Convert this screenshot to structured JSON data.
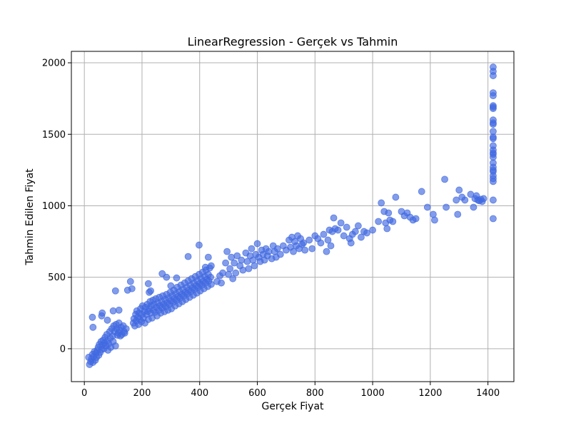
{
  "chart_data": {
    "type": "scatter",
    "title": "LinearRegression - Gerçek vs Tahmin",
    "xlabel": "Gerçek Fiyat",
    "ylabel": "Tahmin Edilen Fiyat",
    "xlim": [
      -45,
      1490
    ],
    "ylim": [
      -230,
      2080
    ],
    "xticks": [
      0,
      200,
      400,
      600,
      800,
      1000,
      1200,
      1400
    ],
    "yticks": [
      0,
      500,
      1000,
      1500,
      2000
    ],
    "grid": true,
    "legend": "none",
    "point_color": "#4169e1",
    "point_opacity": 0.65,
    "series": [
      {
        "points": [
          [
            15,
            -60
          ],
          [
            18,
            -110
          ],
          [
            22,
            -90
          ],
          [
            25,
            -70
          ],
          [
            28,
            -40
          ],
          [
            30,
            -95
          ],
          [
            32,
            -55
          ],
          [
            35,
            -20
          ],
          [
            38,
            -80
          ],
          [
            40,
            -30
          ],
          [
            42,
            -60
          ],
          [
            45,
            -10
          ],
          [
            48,
            10
          ],
          [
            50,
            -45
          ],
          [
            52,
            30
          ],
          [
            55,
            -25
          ],
          [
            58,
            50
          ],
          [
            60,
            -5
          ],
          [
            62,
            25
          ],
          [
            65,
            60
          ],
          [
            68,
            0
          ],
          [
            70,
            40
          ],
          [
            72,
            80
          ],
          [
            75,
            20
          ],
          [
            78,
            100
          ],
          [
            80,
            55
          ],
          [
            82,
            -10
          ],
          [
            85,
            35
          ],
          [
            88,
            120
          ],
          [
            90,
            75
          ],
          [
            92,
            10
          ],
          [
            95,
            140
          ],
          [
            98,
            90
          ],
          [
            100,
            50
          ],
          [
            102,
            160
          ],
          [
            105,
            120
          ],
          [
            108,
            20
          ],
          [
            110,
            170
          ],
          [
            112,
            140
          ],
          [
            115,
            95
          ],
          [
            118,
            110
          ],
          [
            120,
            180
          ],
          [
            122,
            130
          ],
          [
            125,
            90
          ],
          [
            128,
            150
          ],
          [
            130,
            100
          ],
          [
            135,
            160
          ],
          [
            138,
            120
          ],
          [
            140,
            110
          ],
          [
            145,
            140
          ],
          [
            28,
            220
          ],
          [
            30,
            150
          ],
          [
            60,
            230
          ],
          [
            62,
            250
          ],
          [
            80,
            200
          ],
          [
            100,
            265
          ],
          [
            108,
            405
          ],
          [
            120,
            270
          ],
          [
            150,
            410
          ],
          [
            160,
            470
          ],
          [
            165,
            420
          ],
          [
            170,
            180
          ],
          [
            172,
            210
          ],
          [
            175,
            160
          ],
          [
            178,
            240
          ],
          [
            180,
            195
          ],
          [
            182,
            265
          ],
          [
            185,
            220
          ],
          [
            188,
            170
          ],
          [
            190,
            250
          ],
          [
            192,
            205
          ],
          [
            195,
            280
          ],
          [
            198,
            190
          ],
          [
            200,
            240
          ],
          [
            202,
            300
          ],
          [
            205,
            215
          ],
          [
            208,
            260
          ],
          [
            210,
            180
          ],
          [
            212,
            290
          ],
          [
            215,
            240
          ],
          [
            218,
            310
          ],
          [
            220,
            260
          ],
          [
            222,
            205
          ],
          [
            225,
            280
          ],
          [
            228,
            330
          ],
          [
            230,
            250
          ],
          [
            232,
            300
          ],
          [
            235,
            215
          ],
          [
            238,
            340
          ],
          [
            240,
            270
          ],
          [
            242,
            310
          ],
          [
            245,
            255
          ],
          [
            248,
            350
          ],
          [
            250,
            290
          ],
          [
            252,
            230
          ],
          [
            255,
            320
          ],
          [
            258,
            270
          ],
          [
            260,
            360
          ],
          [
            262,
            300
          ],
          [
            265,
            250
          ],
          [
            268,
            330
          ],
          [
            270,
            285
          ],
          [
            272,
            370
          ],
          [
            275,
            310
          ],
          [
            278,
            260
          ],
          [
            280,
            345
          ],
          [
            282,
            295
          ],
          [
            285,
            380
          ],
          [
            288,
            320
          ],
          [
            290,
            270
          ],
          [
            292,
            355
          ],
          [
            295,
            310
          ],
          [
            298,
            395
          ],
          [
            300,
            335
          ],
          [
            302,
            280
          ],
          [
            305,
            370
          ],
          [
            308,
            325
          ],
          [
            310,
            410
          ],
          [
            312,
            350
          ],
          [
            315,
            300
          ],
          [
            318,
            385
          ],
          [
            320,
            340
          ],
          [
            322,
            430
          ],
          [
            325,
            365
          ],
          [
            328,
            315
          ],
          [
            330,
            400
          ],
          [
            332,
            355
          ],
          [
            335,
            445
          ],
          [
            338,
            380
          ],
          [
            340,
            330
          ],
          [
            342,
            415
          ],
          [
            345,
            370
          ],
          [
            348,
            460
          ],
          [
            350,
            395
          ],
          [
            352,
            345
          ],
          [
            355,
            430
          ],
          [
            358,
            385
          ],
          [
            360,
            475
          ],
          [
            362,
            410
          ],
          [
            365,
            360
          ],
          [
            368,
            445
          ],
          [
            370,
            400
          ],
          [
            372,
            490
          ],
          [
            375,
            425
          ],
          [
            378,
            375
          ],
          [
            380,
            460
          ],
          [
            382,
            415
          ],
          [
            385,
            505
          ],
          [
            388,
            440
          ],
          [
            390,
            390
          ],
          [
            392,
            475
          ],
          [
            395,
            430
          ],
          [
            398,
            520
          ],
          [
            400,
            455
          ],
          [
            402,
            405
          ],
          [
            405,
            490
          ],
          [
            408,
            445
          ],
          [
            410,
            535
          ],
          [
            412,
            470
          ],
          [
            415,
            420
          ],
          [
            418,
            505
          ],
          [
            420,
            460
          ],
          [
            422,
            550
          ],
          [
            425,
            485
          ],
          [
            428,
            435
          ],
          [
            430,
            520
          ],
          [
            432,
            475
          ],
          [
            435,
            565
          ],
          [
            438,
            500
          ],
          [
            440,
            450
          ],
          [
            222,
            455
          ],
          [
            225,
            395
          ],
          [
            230,
            405
          ],
          [
            270,
            525
          ],
          [
            285,
            500
          ],
          [
            300,
            440
          ],
          [
            320,
            495
          ],
          [
            360,
            645
          ],
          [
            398,
            725
          ],
          [
            420,
            570
          ],
          [
            430,
            640
          ],
          [
            440,
            580
          ],
          [
            460,
            470
          ],
          [
            470,
            510
          ],
          [
            475,
            460
          ],
          [
            480,
            530
          ],
          [
            490,
            600
          ],
          [
            495,
            680
          ],
          [
            500,
            520
          ],
          [
            505,
            560
          ],
          [
            510,
            640
          ],
          [
            515,
            490
          ],
          [
            520,
            600
          ],
          [
            525,
            530
          ],
          [
            530,
            650
          ],
          [
            540,
            580
          ],
          [
            545,
            620
          ],
          [
            550,
            550
          ],
          [
            560,
            670
          ],
          [
            565,
            610
          ],
          [
            570,
            560
          ],
          [
            575,
            650
          ],
          [
            580,
            700
          ],
          [
            585,
            620
          ],
          [
            590,
            580
          ],
          [
            595,
            660
          ],
          [
            600,
            735
          ],
          [
            605,
            640
          ],
          [
            610,
            610
          ],
          [
            615,
            690
          ],
          [
            620,
            660
          ],
          [
            625,
            620
          ],
          [
            630,
            700
          ],
          [
            635,
            650
          ],
          [
            640,
            680
          ],
          [
            650,
            630
          ],
          [
            655,
            720
          ],
          [
            660,
            680
          ],
          [
            665,
            640
          ],
          [
            670,
            700
          ],
          [
            680,
            660
          ],
          [
            690,
            720
          ],
          [
            700,
            690
          ],
          [
            710,
            760
          ],
          [
            715,
            710
          ],
          [
            720,
            780
          ],
          [
            725,
            680
          ],
          [
            730,
            750
          ],
          [
            735,
            720
          ],
          [
            740,
            790
          ],
          [
            745,
            700
          ],
          [
            750,
            770
          ],
          [
            755,
            730
          ],
          [
            760,
            740
          ],
          [
            765,
            690
          ],
          [
            780,
            760
          ],
          [
            790,
            700
          ],
          [
            800,
            790
          ],
          [
            810,
            770
          ],
          [
            820,
            740
          ],
          [
            830,
            800
          ],
          [
            840,
            680
          ],
          [
            845,
            760
          ],
          [
            850,
            830
          ],
          [
            855,
            720
          ],
          [
            860,
            820
          ],
          [
            865,
            915
          ],
          [
            870,
            840
          ],
          [
            880,
            830
          ],
          [
            890,
            880
          ],
          [
            900,
            790
          ],
          [
            910,
            850
          ],
          [
            920,
            770
          ],
          [
            925,
            740
          ],
          [
            930,
            800
          ],
          [
            940,
            820
          ],
          [
            950,
            860
          ],
          [
            960,
            780
          ],
          [
            970,
            820
          ],
          [
            980,
            810
          ],
          [
            1000,
            830
          ],
          [
            1020,
            890
          ],
          [
            1030,
            1020
          ],
          [
            1040,
            960
          ],
          [
            1045,
            880
          ],
          [
            1050,
            840
          ],
          [
            1055,
            950
          ],
          [
            1060,
            900
          ],
          [
            1070,
            890
          ],
          [
            1080,
            1060
          ],
          [
            1100,
            960
          ],
          [
            1110,
            930
          ],
          [
            1120,
            950
          ],
          [
            1130,
            920
          ],
          [
            1140,
            900
          ],
          [
            1150,
            910
          ],
          [
            1170,
            1100
          ],
          [
            1190,
            990
          ],
          [
            1210,
            940
          ],
          [
            1215,
            900
          ],
          [
            1250,
            1185
          ],
          [
            1255,
            990
          ],
          [
            1290,
            1040
          ],
          [
            1295,
            940
          ],
          [
            1300,
            1110
          ],
          [
            1310,
            1060
          ],
          [
            1320,
            1040
          ],
          [
            1340,
            1080
          ],
          [
            1350,
            990
          ],
          [
            1355,
            1050
          ],
          [
            1360,
            1070
          ],
          [
            1365,
            1040
          ],
          [
            1370,
            1035
          ],
          [
            1375,
            1045
          ],
          [
            1380,
            1030
          ],
          [
            1385,
            1050
          ],
          [
            1418,
            1970
          ],
          [
            1418,
            1940
          ],
          [
            1418,
            1910
          ],
          [
            1418,
            1790
          ],
          [
            1418,
            1770
          ],
          [
            1418,
            1700
          ],
          [
            1418,
            1680
          ],
          [
            1418,
            1600
          ],
          [
            1418,
            1570
          ],
          [
            1418,
            1520
          ],
          [
            1418,
            1470
          ],
          [
            1418,
            1420
          ],
          [
            1418,
            1390
          ],
          [
            1418,
            1370
          ],
          [
            1418,
            1340
          ],
          [
            1418,
            1300
          ],
          [
            1418,
            1270
          ],
          [
            1418,
            1240
          ],
          [
            1418,
            1210
          ],
          [
            1418,
            1170
          ],
          [
            1418,
            1040
          ],
          [
            1418,
            910
          ],
          [
            1418,
            1580
          ],
          [
            1418,
            1480
          ],
          [
            1418,
            1360
          ],
          [
            1418,
            1690
          ],
          [
            1418,
            1250
          ],
          [
            1418,
            1190
          ]
        ]
      }
    ]
  }
}
